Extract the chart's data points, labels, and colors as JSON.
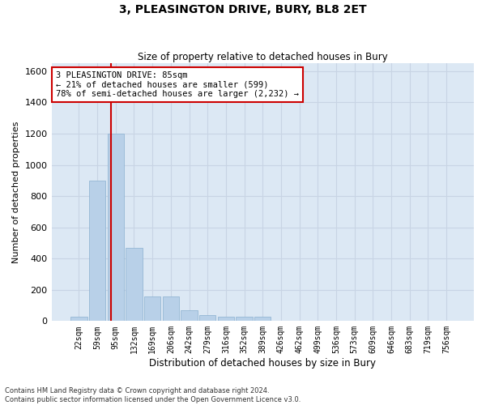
{
  "title": "3, PLEASINGTON DRIVE, BURY, BL8 2ET",
  "subtitle": "Size of property relative to detached houses in Bury",
  "xlabel": "Distribution of detached houses by size in Bury",
  "ylabel": "Number of detached properties",
  "categories": [
    "22sqm",
    "59sqm",
    "95sqm",
    "132sqm",
    "169sqm",
    "206sqm",
    "242sqm",
    "279sqm",
    "316sqm",
    "352sqm",
    "389sqm",
    "426sqm",
    "462sqm",
    "499sqm",
    "536sqm",
    "573sqm",
    "609sqm",
    "646sqm",
    "683sqm",
    "719sqm",
    "756sqm"
  ],
  "values": [
    30,
    900,
    1200,
    470,
    155,
    155,
    70,
    40,
    30,
    30,
    30,
    0,
    0,
    0,
    0,
    0,
    0,
    0,
    0,
    0,
    0
  ],
  "bar_color": "#b8d0e8",
  "bar_edge_color": "#8ab0d0",
  "grid_color": "#c8d4e4",
  "background_color": "#dce8f4",
  "vline_color": "#cc0000",
  "annotation_text": "3 PLEASINGTON DRIVE: 85sqm\n← 21% of detached houses are smaller (599)\n78% of semi-detached houses are larger (2,232) →",
  "annotation_box_color": "#ffffff",
  "annotation_box_edge": "#cc0000",
  "ylim": [
    0,
    1650
  ],
  "yticks": [
    0,
    200,
    400,
    600,
    800,
    1000,
    1200,
    1400,
    1600
  ],
  "footer": "Contains HM Land Registry data © Crown copyright and database right 2024.\nContains public sector information licensed under the Open Government Licence v3.0."
}
